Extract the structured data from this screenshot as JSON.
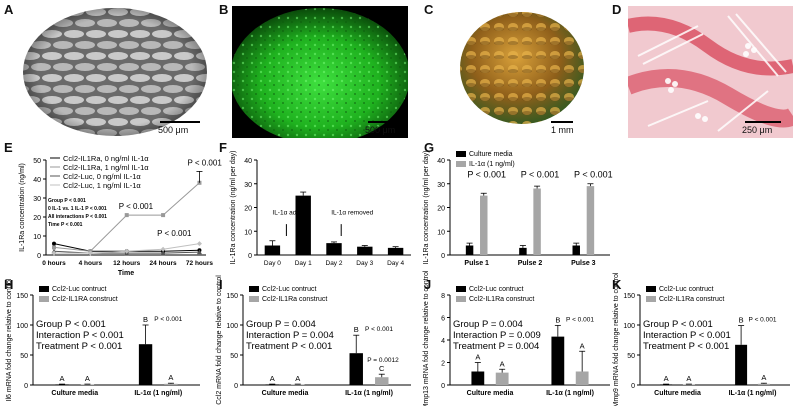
{
  "panel_labels": {
    "A": "A",
    "B": "B",
    "C": "C",
    "D": "D",
    "E": "E",
    "F": "F",
    "G": "G",
    "H": "H",
    "I": "I",
    "J": "J",
    "K": "K"
  },
  "images": {
    "A": {
      "scale": "500 μm"
    },
    "B": {
      "scale": "500 μm"
    },
    "C": {
      "scale": "1 mm"
    },
    "D": {
      "scale": "250 μm"
    }
  },
  "colors": {
    "black": "#000000",
    "gray": "#a6a6a6",
    "lightgray": "#c8c8c8",
    "green": "#22c022",
    "red": "#d84a5a"
  },
  "chart_data": [
    {
      "panel": "E",
      "type": "line",
      "ylabel": "IL-1Ra concentration (ng/ml)",
      "xlabel": "Time",
      "categories": [
        "0 hours",
        "4 hours",
        "12 hours",
        "24 hours",
        "72 hours"
      ],
      "ylim": [
        0,
        50
      ],
      "yticks": [
        "0",
        "10",
        "20",
        "30",
        "40",
        "50"
      ],
      "stats": [
        "Group P < 0.001",
        "0 IL-1 vs. 1 IL-1 P < 0.001",
        "All interactions P < 0.001",
        "Time P < 0.001"
      ],
      "series": [
        {
          "name": "Ccl2-IL1Ra, 0 ng/ml IL-1α",
          "values": [
            6,
            2,
            2,
            2,
            2.5
          ]
        },
        {
          "name": "Ccl2-IL1Ra, 1 ng/ml IL-1α",
          "values": [
            4,
            2,
            21,
            21,
            38
          ]
        },
        {
          "name": "Ccl2-Luc, 0 ng/ml IL-1α",
          "values": [
            2,
            1,
            1,
            1,
            1.5
          ]
        },
        {
          "name": "Ccl2-Luc, 1 ng/ml IL-1α",
          "values": [
            1,
            1,
            2,
            3,
            6
          ]
        }
      ],
      "annotations": [
        "P < 0.001",
        "P < 0.001",
        "P < 0.001"
      ]
    },
    {
      "panel": "F",
      "type": "bar",
      "ylabel": "IL-1Ra concentration (ng/ml per day)",
      "categories": [
        "Day 0",
        "Day 1",
        "Day 2",
        "Day 3",
        "Day 4"
      ],
      "values": [
        4,
        25,
        5,
        3.5,
        3
      ],
      "errors": [
        2,
        1.5,
        0.5,
        0.5,
        0.5
      ],
      "ylim": [
        0,
        40
      ],
      "yticks": [
        "0",
        "10",
        "20",
        "30",
        "40"
      ],
      "annotations": [
        "IL-1α added",
        "IL-1α removed"
      ]
    },
    {
      "panel": "G",
      "type": "bar",
      "ylabel": "IL-1Ra concentration (ng/ml per day)",
      "categories": [
        "Pulse 1",
        "Pulse 2",
        "Pulse 3"
      ],
      "series": [
        {
          "name": "Culture media",
          "values": [
            4,
            3,
            4
          ],
          "errors": [
            1,
            1,
            1
          ]
        },
        {
          "name": "IL-1α (1 ng/ml)",
          "values": [
            25,
            28,
            29
          ],
          "errors": [
            1,
            1,
            1
          ]
        }
      ],
      "ylim": [
        0,
        40
      ],
      "yticks": [
        "0",
        "10",
        "20",
        "30",
        "40"
      ],
      "annotations": [
        "P < 0.001",
        "P < 0.001",
        "P < 0.001"
      ]
    },
    {
      "panel": "H",
      "type": "bar",
      "ylabel": "Il6 mRNA fold change relative to control",
      "categories": [
        "Culture media",
        "IL-1α (1 ng/ml)"
      ],
      "series": [
        {
          "name": "Ccl2-Luc contruct",
          "values": [
            1,
            68
          ],
          "errors": [
            0.5,
            32
          ]
        },
        {
          "name": "Ccl2-IL1RA construct",
          "values": [
            1,
            2
          ],
          "errors": [
            0.5,
            1
          ]
        }
      ],
      "ylim": [
        0,
        150
      ],
      "yticks": [
        "0",
        "50",
        "100",
        "150"
      ],
      "stats": [
        "Group P < 0.001",
        "Interaction P < 0.001",
        "Treatment P < 0.001"
      ],
      "letters": [
        "A",
        "A",
        "B",
        "A"
      ],
      "annotations": [
        "P < 0.001"
      ]
    },
    {
      "panel": "I",
      "type": "bar",
      "ylabel": "Ccl2 mRNA fold change relative to control",
      "categories": [
        "Culture media",
        "IL-1α (1 ng/ml)"
      ],
      "series": [
        {
          "name": "Ccl2-Luc contruct",
          "values": [
            1,
            53
          ],
          "errors": [
            0.5,
            30
          ]
        },
        {
          "name": "Ccl2-IL1Ra construct",
          "values": [
            1,
            13
          ],
          "errors": [
            0.5,
            5
          ]
        }
      ],
      "ylim": [
        0,
        150
      ],
      "yticks": [
        "0",
        "50",
        "100",
        "150"
      ],
      "stats": [
        "Group P = 0.004",
        "Interaction P = 0.004",
        "Treatment P < 0.001"
      ],
      "letters": [
        "A",
        "A",
        "B",
        "C"
      ],
      "annotations": [
        "P < 0.001",
        "P = 0.0012"
      ]
    },
    {
      "panel": "J",
      "type": "bar",
      "ylabel": "Mmp13 mRNA fold change relative to control",
      "categories": [
        "Culture media",
        "IL-1α (1 ng/ml)"
      ],
      "series": [
        {
          "name": "Ccl2-Luc contruct",
          "values": [
            1.2,
            4.3
          ],
          "errors": [
            0.8,
            1
          ]
        },
        {
          "name": "Ccl2-IL1Ra construct",
          "values": [
            1.1,
            1.2
          ],
          "errors": [
            0.3,
            1.8
          ]
        }
      ],
      "ylim": [
        0,
        8
      ],
      "yticks": [
        "0",
        "2",
        "4",
        "6",
        "8"
      ],
      "stats": [
        "Group P = 0.004",
        "Interaction P = 0.009",
        "Treatment P = 0.004"
      ],
      "letters": [
        "A",
        "A",
        "B",
        "A"
      ],
      "annotations": [
        "P < 0.001"
      ]
    },
    {
      "panel": "K",
      "type": "bar",
      "ylabel": "Mmp9 mRNA fold change relative to control",
      "categories": [
        "Culture media",
        "IL-1α (1 ng/ml)"
      ],
      "series": [
        {
          "name": "Ccl2-Luc contruct",
          "values": [
            1,
            67
          ],
          "errors": [
            0.5,
            32
          ]
        },
        {
          "name": "Ccl2-IL1Ra construct",
          "values": [
            1,
            2
          ],
          "errors": [
            0.5,
            1
          ]
        }
      ],
      "ylim": [
        0,
        150
      ],
      "yticks": [
        "0",
        "50",
        "100",
        "150"
      ],
      "stats": [
        "Group P < 0.001",
        "Interaction P < 0.001",
        "Treatment P < 0.001"
      ],
      "letters": [
        "A",
        "A",
        "B",
        "A"
      ],
      "annotations": [
        "P < 0.001"
      ]
    }
  ]
}
